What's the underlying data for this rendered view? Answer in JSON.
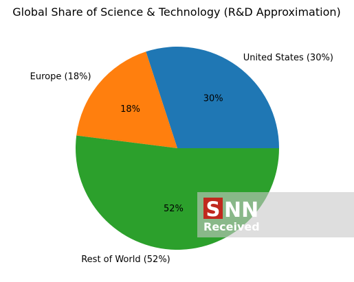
{
  "chart_data": {
    "type": "pie",
    "title": "Global Share of Science & Technology (R&D Approximation)",
    "categories": [
      "United States (30%)",
      "Europe (18%)",
      "Rest of World (52%)"
    ],
    "values": [
      30,
      18,
      52
    ],
    "pct_labels": [
      "30%",
      "18%",
      "52%"
    ],
    "colors": [
      "#1f77b4",
      "#ff7f0e",
      "#2ca02c"
    ],
    "start_angle_deg": 0,
    "direction": "counterclockwise"
  },
  "watermark": {
    "logo_letter": "S",
    "logo_text": "NN",
    "subtitle": "Received",
    "background": "#bfbfbf",
    "logo_color": "#c0281e"
  }
}
